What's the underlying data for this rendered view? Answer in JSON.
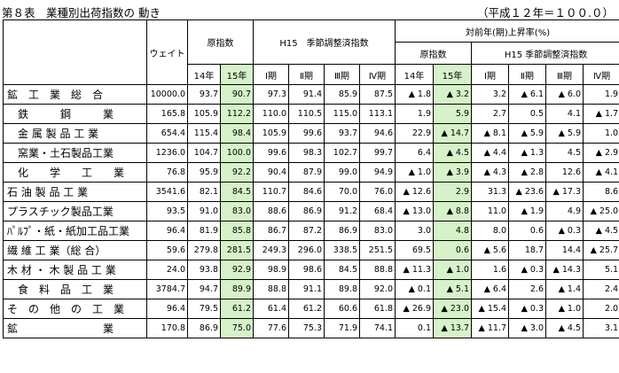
{
  "title": "第８表　業種別出荷指数の 動き",
  "base_note": "（平成１２年＝１００.０）",
  "headers": {
    "weight": "ウェイト",
    "raw_index": "原指数",
    "sa_index": "H15　季節調整済指数",
    "yoy": "対前年(期)上昇率(%)",
    "yoy_raw": "原指数",
    "yoy_sa": "H15 季節調整済指数",
    "y14": "14年",
    "y15": "15年",
    "q1": "Ⅰ期",
    "q2": "Ⅱ期",
    "q3": "Ⅲ期",
    "q4": "Ⅳ期"
  },
  "rows": [
    {
      "name": "鉱　工　業　総　合",
      "indent": false,
      "weight": "10000.0",
      "r14": "93.7",
      "r15": "90.7",
      "q1": "97.3",
      "q2": "91.4",
      "q3": "85.9",
      "q4": "87.5",
      "y14": "▲ 1.8",
      "y15": "▲ 3.2",
      "c1": "3.2",
      "c2": "▲ 6.1",
      "c3": "▲ 6.0",
      "c4": "1.9"
    },
    {
      "name": "鉄　　　鋼　　　業",
      "indent": true,
      "weight": "165.8",
      "r14": "105.9",
      "r15": "112.2",
      "q1": "110.0",
      "q2": "110.5",
      "q3": "115.0",
      "q4": "113.1",
      "y14": "1.9",
      "y15": "5.9",
      "c1": "2.7",
      "c2": "0.5",
      "c3": "4.1",
      "c4": "▲ 1.7"
    },
    {
      "name": "金 属 製 品 工 業",
      "indent": true,
      "weight": "654.4",
      "r14": "115.4",
      "r15": "98.4",
      "q1": "105.9",
      "q2": "99.6",
      "q3": "93.7",
      "q4": "94.6",
      "y14": "22.9",
      "y15": "▲ 14.7",
      "c1": "▲ 8.1",
      "c2": "▲ 5.9",
      "c3": "▲ 5.9",
      "c4": "1.0"
    },
    {
      "name": "窯業・土石製品工業",
      "indent": true,
      "weight": "1236.0",
      "r14": "104.7",
      "r15": "100.0",
      "q1": "99.6",
      "q2": "98.3",
      "q3": "102.7",
      "q4": "99.7",
      "y14": "6.4",
      "y15": "▲ 4.5",
      "c1": "▲ 4.4",
      "c2": "▲ 1.3",
      "c3": "4.5",
      "c4": "▲ 2.9"
    },
    {
      "name": "化　　学　　工　　業",
      "indent": true,
      "weight": "76.8",
      "r14": "95.9",
      "r15": "92.2",
      "q1": "90.4",
      "q2": "87.9",
      "q3": "99.0",
      "q4": "94.9",
      "y14": "▲ 1.0",
      "y15": "▲ 3.9",
      "c1": "▲ 4.3",
      "c2": "▲ 2.8",
      "c3": "12.6",
      "c4": "▲ 4.1"
    },
    {
      "name": "石 油 製 品 工 業",
      "indent": false,
      "weight": "3541.6",
      "r14": "82.1",
      "r15": "84.5",
      "q1": "110.7",
      "q2": "84.6",
      "q3": "70.0",
      "q4": "76.0",
      "y14": "▲ 12.6",
      "y15": "2.9",
      "c1": "31.3",
      "c2": "▲ 23.6",
      "c3": "▲ 17.3",
      "c4": "8.6"
    },
    {
      "name": "プラスチック製品工業",
      "indent": false,
      "weight": "93.5",
      "r14": "91.0",
      "r15": "83.0",
      "q1": "88.6",
      "q2": "86.9",
      "q3": "91.2",
      "q4": "68.4",
      "y14": "▲ 13.0",
      "y15": "▲ 8.8",
      "c1": "11.0",
      "c2": "▲ 1.9",
      "c3": "4.9",
      "c4": "▲ 25.0"
    },
    {
      "name": "ﾊﾟﾙﾌﾟ・紙・紙加工品工業",
      "indent": false,
      "weight": "96.4",
      "r14": "81.9",
      "r15": "85.8",
      "q1": "86.7",
      "q2": "87.2",
      "q3": "86.9",
      "q4": "83.0",
      "y14": "3.0",
      "y15": "4.8",
      "c1": "8.0",
      "c2": "0.6",
      "c3": "▲ 0.3",
      "c4": "▲ 4.5"
    },
    {
      "name": "繊 維 工 業（総 合）",
      "indent": false,
      "weight": "59.6",
      "r14": "279.8",
      "r15": "281.5",
      "q1": "249.3",
      "q2": "296.0",
      "q3": "338.5",
      "q4": "251.5",
      "y14": "69.5",
      "y15": "0.6",
      "c1": "▲ 5.6",
      "c2": "18.7",
      "c3": "14.4",
      "c4": "▲ 25.7"
    },
    {
      "name": "木 材 ・ 木 製 品 工 業",
      "indent": false,
      "weight": "24.0",
      "r14": "93.8",
      "r15": "92.9",
      "q1": "98.9",
      "q2": "98.6",
      "q3": "84.5",
      "q4": "88.8",
      "y14": "▲ 11.3",
      "y15": "▲ 1.0",
      "c1": "1.6",
      "c2": "▲ 0.3",
      "c3": "▲ 14.3",
      "c4": "5.1"
    },
    {
      "name": "食　料　品　工　業",
      "indent": true,
      "weight": "3784.7",
      "r14": "94.7",
      "r15": "89.9",
      "q1": "88.8",
      "q2": "91.1",
      "q3": "89.8",
      "q4": "92.0",
      "y14": "▲ 0.1",
      "y15": "▲ 5.1",
      "c1": "▲ 6.4",
      "c2": "2.6",
      "c3": "▲ 1.4",
      "c4": "2.4"
    },
    {
      "name": "そ　の　他　の　工　業",
      "indent": false,
      "weight": "96.4",
      "r14": "79.5",
      "r15": "61.2",
      "q1": "61.4",
      "q2": "61.2",
      "q3": "60.6",
      "q4": "61.8",
      "y14": "▲ 26.9",
      "y15": "▲ 23.0",
      "c1": "▲ 15.4",
      "c2": "▲ 0.3",
      "c3": "▲ 1.0",
      "c4": "2.0"
    },
    {
      "name": "鉱　　　　　　　　業",
      "indent": false,
      "weight": "170.8",
      "r14": "86.9",
      "r15": "75.0",
      "q1": "77.6",
      "q2": "75.3",
      "q3": "71.9",
      "q4": "74.1",
      "y14": "0.1",
      "y15": "▲ 13.7",
      "c1": "▲ 11.7",
      "c2": "▲ 3.0",
      "c3": "▲ 4.5",
      "c4": "3.1"
    }
  ]
}
